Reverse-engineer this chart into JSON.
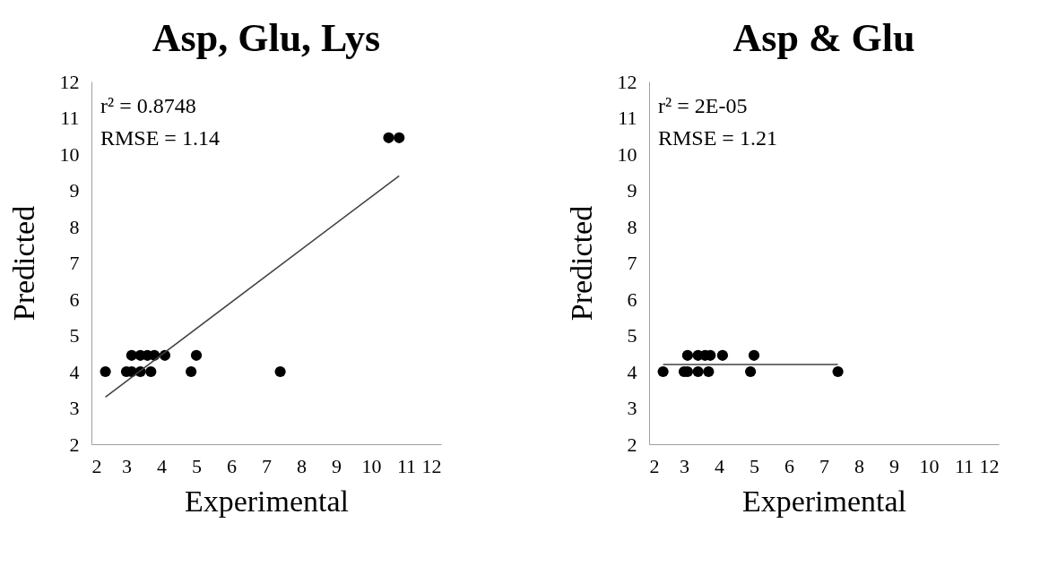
{
  "chart_data": [
    {
      "type": "scatter",
      "title": "Asp, Glu, Lys",
      "xlabel": "Experimental",
      "ylabel": "Predicted",
      "xlim": [
        2,
        12
      ],
      "ylim": [
        2,
        12
      ],
      "xticks": [
        2,
        3,
        4,
        5,
        6,
        7,
        8,
        9,
        10,
        11,
        12
      ],
      "yticks": [
        2,
        3,
        4,
        5,
        6,
        7,
        8,
        9,
        10,
        11,
        12
      ],
      "marker": "circle",
      "annotations": [
        "r² = 0.8748",
        "RMSE = 1.14"
      ],
      "series": [
        {
          "color": "#000000",
          "x": [
            2.4,
            3.0,
            3.15,
            3.4,
            3.7,
            4.85,
            7.4,
            3.15,
            3.4,
            3.6,
            3.8,
            4.1,
            5.0,
            10.5,
            10.8
          ],
          "values": [
            4.0,
            4.0,
            4.0,
            4.0,
            4.0,
            4.0,
            4.0,
            4.45,
            4.45,
            4.45,
            4.45,
            4.45,
            4.45,
            10.45,
            10.45
          ]
        },
        {
          "type": "line",
          "marker": "none",
          "color": "#404040",
          "x": [
            2.4,
            10.8
          ],
          "values": [
            3.3,
            9.4
          ]
        }
      ]
    },
    {
      "type": "scatter",
      "title": "Asp & Glu",
      "xlabel": "Experimental",
      "ylabel": "Predicted",
      "xlim": [
        2,
        12
      ],
      "ylim": [
        2,
        12
      ],
      "xticks": [
        2,
        3,
        4,
        5,
        6,
        7,
        8,
        9,
        10,
        11,
        12
      ],
      "yticks": [
        2,
        3,
        4,
        5,
        6,
        7,
        8,
        9,
        10,
        11,
        12
      ],
      "marker": "circle",
      "annotations": [
        "r² = 2E-05",
        "RMSE = 1.21"
      ],
      "series": [
        {
          "color": "#000000",
          "x": [
            2.4,
            3.0,
            3.1,
            3.4,
            3.7,
            4.9,
            7.4,
            3.1,
            3.4,
            3.6,
            3.75,
            4.1,
            5.0
          ],
          "values": [
            4.0,
            4.0,
            4.0,
            4.0,
            4.0,
            4.0,
            4.0,
            4.45,
            4.45,
            4.45,
            4.45,
            4.45,
            4.45
          ]
        },
        {
          "type": "line",
          "marker": "none",
          "color": "#404040",
          "x": [
            2.4,
            7.4
          ],
          "values": [
            4.2,
            4.2
          ]
        }
      ]
    }
  ]
}
